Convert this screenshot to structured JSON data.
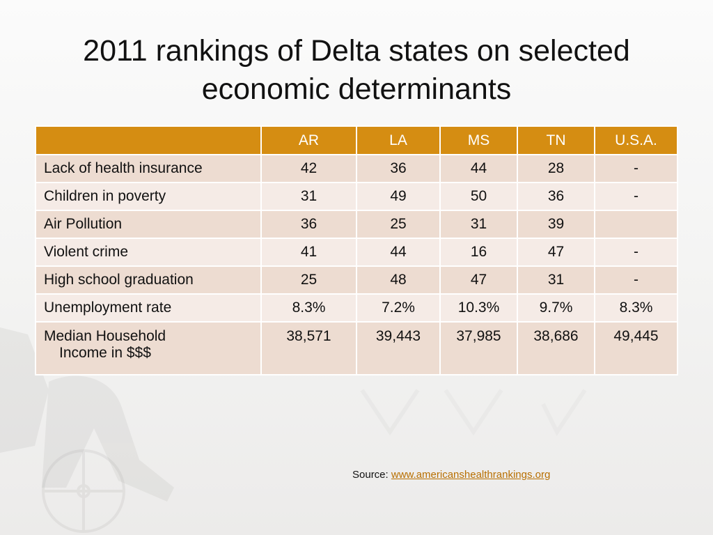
{
  "slide": {
    "title_line1": "2011 rankings of Delta states on selected",
    "title_line2": "economic determinants"
  },
  "table": {
    "columns": [
      "",
      "AR",
      "LA",
      "MS",
      "TN",
      "U.S.A."
    ],
    "rows": [
      {
        "label": "Lack of health insurance",
        "values": [
          "42",
          "36",
          "44",
          "28",
          "-"
        ]
      },
      {
        "label": "Children in poverty",
        "values": [
          "31",
          "49",
          "50",
          "36",
          "-"
        ]
      },
      {
        "label": "Air Pollution",
        "values": [
          "36",
          "25",
          "31",
          "39",
          ""
        ]
      },
      {
        "label": "Violent crime",
        "values": [
          "41",
          "44",
          "16",
          "47",
          "-"
        ]
      },
      {
        "label": "High school graduation",
        "values": [
          "25",
          "48",
          "47",
          "31",
          "-"
        ]
      },
      {
        "label": "Unemployment rate",
        "values": [
          "8.3%",
          "7.2%",
          "10.3%",
          "9.7%",
          "8.3%"
        ]
      },
      {
        "label_line1": "Median Household",
        "label_line2": "Income in $$$",
        "values": [
          "38,571",
          "39,443",
          "37,985",
          "38,686",
          "49,445"
        ]
      }
    ]
  },
  "source": {
    "prefix": "Source: ",
    "link_text": "www.americanshealthrankings.org"
  },
  "colors": {
    "header_bg": "#d58d12",
    "row_odd": "#eddcd1",
    "row_even": "#f5ebe6",
    "link": "#b86f00"
  }
}
